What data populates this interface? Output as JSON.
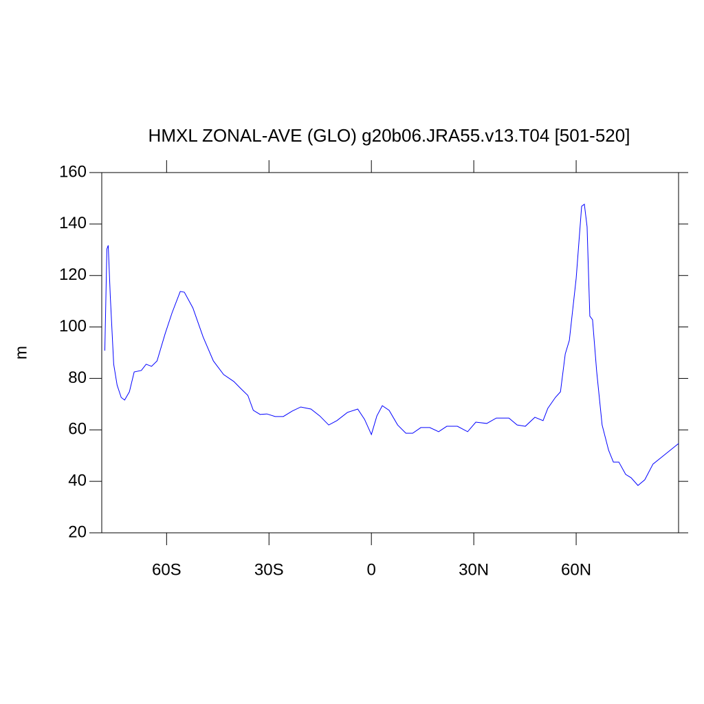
{
  "chart_data": {
    "type": "line",
    "title": "HMXL ZONAL-AVE (GLO) g20b06.JRA55.v13.T04 [501-520]",
    "y_label": "m",
    "x": [
      -78.1,
      -77.5,
      -77.1,
      -76.5,
      -75.5,
      -74.5,
      -73.3,
      -72.3,
      -70.9,
      -69.5,
      -67.4,
      -66,
      -64.4,
      -62.8,
      -60.4,
      -58.4,
      -56,
      -54.8,
      -52.3,
      -49.3,
      -46.3,
      -43.3,
      -40.3,
      -38.3,
      -36.2,
      -34.6,
      -32.6,
      -30.6,
      -28.2,
      -25.8,
      -23.2,
      -20.7,
      -17.7,
      -15.1,
      -12.5,
      -10.1,
      -7,
      -4,
      -2,
      0,
      1.6,
      3.2,
      5.2,
      7.7,
      10.1,
      12.1,
      14.5,
      17.1,
      19.7,
      22.1,
      25.2,
      28.2,
      30.6,
      33.8,
      36.6,
      40.3,
      42.7,
      45.1,
      47.9,
      50.3,
      51.7,
      53.9,
      55.4,
      56.8,
      58,
      60,
      61.6,
      62.4,
      63.2,
      64,
      64.8,
      66,
      67.6,
      69.5,
      70.9,
      72.5,
      74.5,
      76.1,
      78.1,
      80.1,
      82.5,
      85.5,
      90
    ],
    "series": [
      {
        "name": "HMXL",
        "color": "#0000ff",
        "values": [
          90.8,
          130.3,
          131.7,
          112,
          85.5,
          77.4,
          72.6,
          71.6,
          74.8,
          82.5,
          83.1,
          85.5,
          84.7,
          86.8,
          97.5,
          105.5,
          113.8,
          113.5,
          107.4,
          96.1,
          86.8,
          81.5,
          78.8,
          76.1,
          73.4,
          67.6,
          66,
          66.2,
          65.2,
          65.2,
          67.3,
          68.9,
          68.1,
          65.4,
          61.9,
          63.6,
          66.8,
          68.1,
          64.1,
          58.2,
          65.4,
          69.4,
          67.6,
          61.9,
          58.7,
          58.7,
          60.9,
          60.9,
          59.3,
          61.4,
          61.4,
          59.3,
          63,
          62.5,
          64.6,
          64.6,
          61.9,
          61.4,
          64.9,
          63.6,
          68.4,
          72.6,
          74.8,
          89.5,
          94.8,
          118.9,
          146.9,
          147.7,
          138.9,
          104.2,
          102.8,
          82.8,
          61.9,
          52.1,
          47.5,
          47.5,
          42.7,
          41.4,
          38.4,
          40.6,
          46.7,
          49.9,
          54.7
        ]
      }
    ],
    "xlim": [
      -79,
      90
    ],
    "xticks": [
      {
        "value": -60,
        "label": "60S"
      },
      {
        "value": -30,
        "label": "30S"
      },
      0,
      {
        "value": 30,
        "label": "30N"
      },
      {
        "value": 60,
        "label": "60N"
      }
    ],
    "ylim": [
      20,
      160
    ],
    "yticks": [
      20,
      40,
      60,
      80,
      100,
      120,
      140,
      160
    ]
  }
}
